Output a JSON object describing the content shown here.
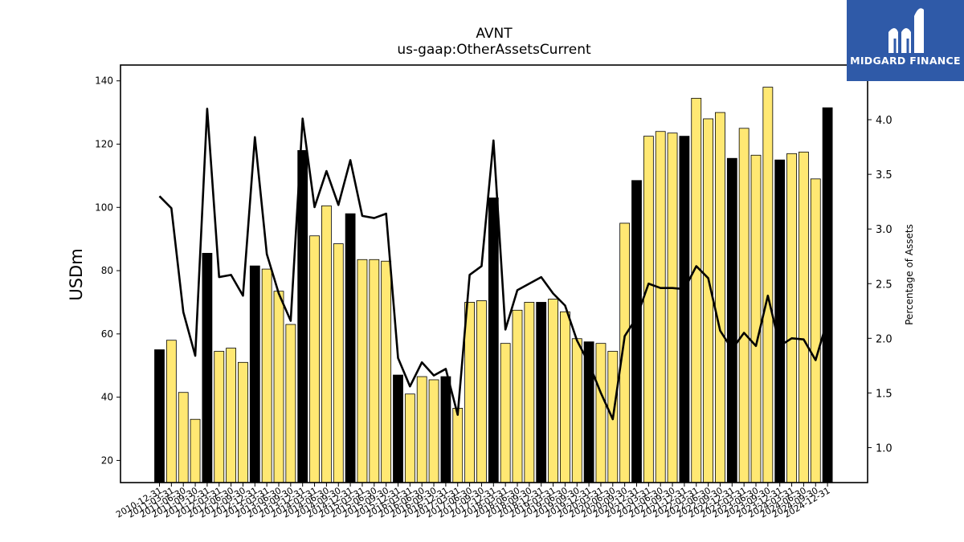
{
  "chart_data": {
    "type": "bar",
    "title": "AVNT",
    "subtitle": "us-gaap:OtherAssetsCurrent",
    "ylabel": "USDm",
    "y2label": "Percentage of Assets",
    "ylim": [
      13,
      145
    ],
    "y2lim": [
      0.68,
      4.5
    ],
    "yticks": [
      20,
      40,
      60,
      80,
      100,
      120,
      140
    ],
    "y2ticks": [
      "1.0",
      "1.5",
      "2.0",
      "2.5",
      "3.0",
      "3.5",
      "4.0"
    ],
    "grid": false,
    "colors": {
      "annual": "#000000",
      "quarterly": "#ffe873",
      "line": "#000000"
    },
    "categories": [
      "2010-12-31",
      "2011-03-31",
      "2011-06-30",
      "2011-09-30",
      "2011-12-31",
      "2012-03-31",
      "2012-06-30",
      "2012-09-30",
      "2012-12-31",
      "2013-03-31",
      "2013-06-30",
      "2013-09-30",
      "2013-12-31",
      "2014-03-31",
      "2014-06-30",
      "2014-09-30",
      "2014-12-31",
      "2015-03-31",
      "2015-06-30",
      "2015-09-30",
      "2015-12-31",
      "2016-03-31",
      "2016-06-30",
      "2016-09-30",
      "2016-12-31",
      "2017-03-31",
      "2017-06-30",
      "2017-09-30",
      "2017-12-31",
      "2018-03-31",
      "2018-06-30",
      "2018-09-30",
      "2018-12-31",
      "2019-03-31",
      "2019-06-30",
      "2019-09-30",
      "2019-12-31",
      "2020-03-31",
      "2020-06-30",
      "2020-09-30",
      "2020-12-31",
      "2021-03-31",
      "2021-06-30",
      "2021-09-30",
      "2021-12-31",
      "2022-03-31",
      "2022-06-30",
      "2022-09-30",
      "2022-12-31",
      "2023-03-31",
      "2023-06-30",
      "2023-09-30",
      "2023-12-31",
      "2024-03-31",
      "2024-06-30",
      "2024-09-30",
      "2024-12-31"
    ],
    "series": [
      {
        "values": [
          55,
          58,
          41.5,
          33,
          85.5,
          54.5,
          55.5,
          51,
          81.5,
          80.5,
          73.5,
          63,
          118,
          91,
          100.5,
          88.5,
          98,
          83.5,
          83.5,
          83,
          47,
          41,
          46.5,
          45.5,
          46.5,
          36.5,
          70,
          70.5,
          103,
          57,
          67.5,
          70,
          70,
          71,
          67,
          58.5,
          57.5,
          57,
          54.5,
          95,
          108.5,
          122.5,
          124,
          123.5,
          122.5,
          134.5,
          128,
          130,
          115.5,
          125,
          116.5,
          138,
          115,
          117,
          117.5,
          109,
          131.5
        ],
        "is_annual": [
          1,
          0,
          0,
          0,
          1,
          0,
          0,
          0,
          1,
          0,
          0,
          0,
          1,
          0,
          0,
          0,
          1,
          0,
          0,
          0,
          1,
          0,
          0,
          0,
          1,
          0,
          0,
          0,
          1,
          0,
          0,
          0,
          1,
          0,
          0,
          0,
          1,
          0,
          0,
          0,
          1,
          0,
          0,
          0,
          1,
          0,
          0,
          0,
          1,
          0,
          0,
          0,
          1,
          0,
          0,
          0,
          1
        ]
      },
      {
        "values": [
          3.3,
          3.19,
          2.24,
          1.84,
          4.1,
          2.56,
          2.58,
          2.39,
          3.84,
          2.77,
          2.41,
          2.16,
          4.01,
          3.2,
          3.53,
          3.22,
          3.63,
          3.12,
          3.1,
          3.14,
          1.82,
          1.56,
          1.78,
          1.66,
          1.72,
          1.3,
          2.58,
          2.66,
          3.81,
          2.08,
          2.44,
          2.5,
          2.56,
          2.41,
          2.3,
          1.98,
          1.77,
          1.5,
          1.26,
          2.02,
          2.19,
          2.5,
          2.46,
          2.46,
          2.45,
          2.66,
          2.55,
          2.07,
          1.9,
          2.05,
          1.93,
          2.39,
          1.93,
          2.0,
          1.99,
          1.8,
          2.17
        ]
      }
    ]
  },
  "logo": {
    "text": "MIDGARD FINANCE"
  }
}
